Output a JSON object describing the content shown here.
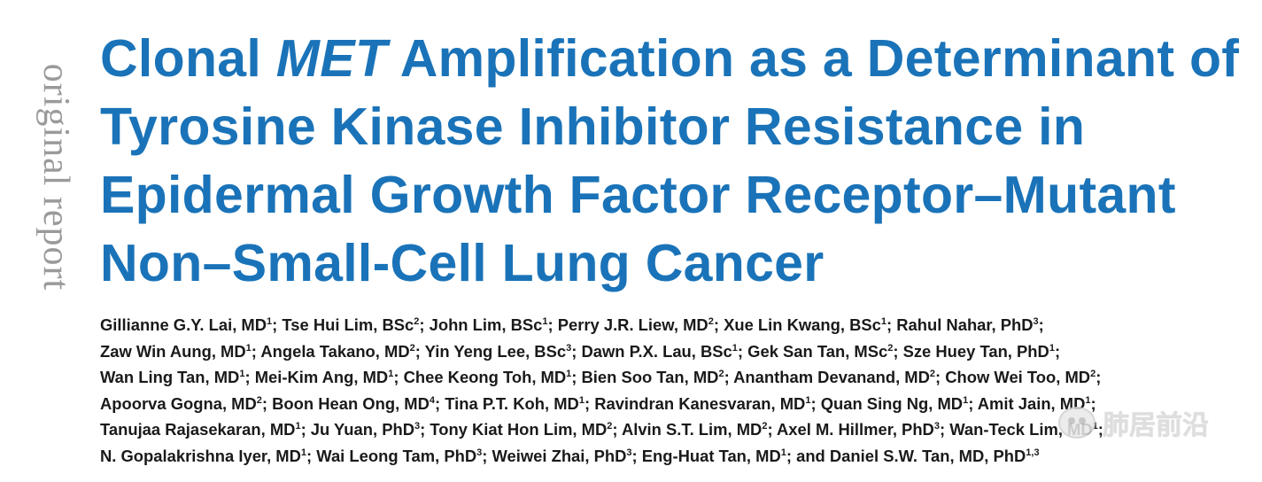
{
  "side_label": "original report",
  "title": {
    "line1_part1": "Clonal ",
    "line1_italic": "MET",
    "line1_part2": " Amplification as a Determinant of",
    "line2": "Tyrosine Kinase Inhibitor Resistance in",
    "line3": "Epidermal Growth Factor Receptor–Mutant",
    "line4": "Non–Small-Cell Lung Cancer"
  },
  "authors": {
    "lines": [
      [
        {
          "name": "Gillianne G.Y. Lai, MD",
          "sup": "1",
          "sep": "; "
        },
        {
          "name": "Tse Hui Lim, BSc",
          "sup": "2",
          "sep": "; "
        },
        {
          "name": "John Lim, BSc",
          "sup": "1",
          "sep": "; "
        },
        {
          "name": "Perry J.R. Liew, MD",
          "sup": "2",
          "sep": "; "
        },
        {
          "name": "Xue Lin Kwang, BSc",
          "sup": "1",
          "sep": "; "
        },
        {
          "name": "Rahul Nahar, PhD",
          "sup": "3",
          "sep": ";"
        }
      ],
      [
        {
          "name": "Zaw Win Aung, MD",
          "sup": "1",
          "sep": "; "
        },
        {
          "name": "Angela Takano, MD",
          "sup": "2",
          "sep": "; "
        },
        {
          "name": "Yin Yeng Lee, BSc",
          "sup": "3",
          "sep": "; "
        },
        {
          "name": "Dawn P.X. Lau, BSc",
          "sup": "1",
          "sep": "; "
        },
        {
          "name": "Gek San Tan, MSc",
          "sup": "2",
          "sep": "; "
        },
        {
          "name": "Sze Huey Tan, PhD",
          "sup": "1",
          "sep": ";"
        }
      ],
      [
        {
          "name": "Wan Ling Tan, MD",
          "sup": "1",
          "sep": "; "
        },
        {
          "name": "Mei-Kim Ang, MD",
          "sup": "1",
          "sep": "; "
        },
        {
          "name": "Chee Keong Toh, MD",
          "sup": "1",
          "sep": "; "
        },
        {
          "name": "Bien Soo Tan, MD",
          "sup": "2",
          "sep": "; "
        },
        {
          "name": "Anantham Devanand, MD",
          "sup": "2",
          "sep": "; "
        },
        {
          "name": "Chow Wei Too, MD",
          "sup": "2",
          "sep": ";"
        }
      ],
      [
        {
          "name": "Apoorva Gogna, MD",
          "sup": "2",
          "sep": "; "
        },
        {
          "name": "Boon Hean Ong, MD",
          "sup": "4",
          "sep": "; "
        },
        {
          "name": "Tina P.T. Koh, MD",
          "sup": "1",
          "sep": "; "
        },
        {
          "name": "Ravindran Kanesvaran, MD",
          "sup": "1",
          "sep": "; "
        },
        {
          "name": "Quan Sing Ng, MD",
          "sup": "1",
          "sep": "; "
        },
        {
          "name": "Amit Jain, MD",
          "sup": "1",
          "sep": ";"
        }
      ],
      [
        {
          "name": "Tanujaa Rajasekaran, MD",
          "sup": "1",
          "sep": "; "
        },
        {
          "name": "Ju Yuan, PhD",
          "sup": "3",
          "sep": "; "
        },
        {
          "name": "Tony Kiat Hon Lim, MD",
          "sup": "2",
          "sep": "; "
        },
        {
          "name": "Alvin S.T. Lim, MD",
          "sup": "2",
          "sep": "; "
        },
        {
          "name": "Axel M. Hillmer, PhD",
          "sup": "3",
          "sep": "; "
        },
        {
          "name": "Wan-Teck Lim, MD",
          "sup": "1",
          "sep": ";"
        }
      ],
      [
        {
          "name": "N. Gopalakrishna Iyer, MD",
          "sup": "1",
          "sep": "; "
        },
        {
          "name": "Wai Leong Tam, PhD",
          "sup": "3",
          "sep": "; "
        },
        {
          "name": "Weiwei Zhai, PhD",
          "sup": "3",
          "sep": "; "
        },
        {
          "name": "Eng-Huat Tan, MD",
          "sup": "1",
          "sep": "; "
        },
        {
          "name": "and Daniel S.W. Tan, MD, PhD",
          "sup": "1,3",
          "sep": ""
        }
      ]
    ]
  },
  "watermark": {
    "text": "肺居前沿"
  },
  "colors": {
    "title": "#1a73b8",
    "side_label": "#9a9a9a",
    "authors": "#1a1a1a"
  }
}
